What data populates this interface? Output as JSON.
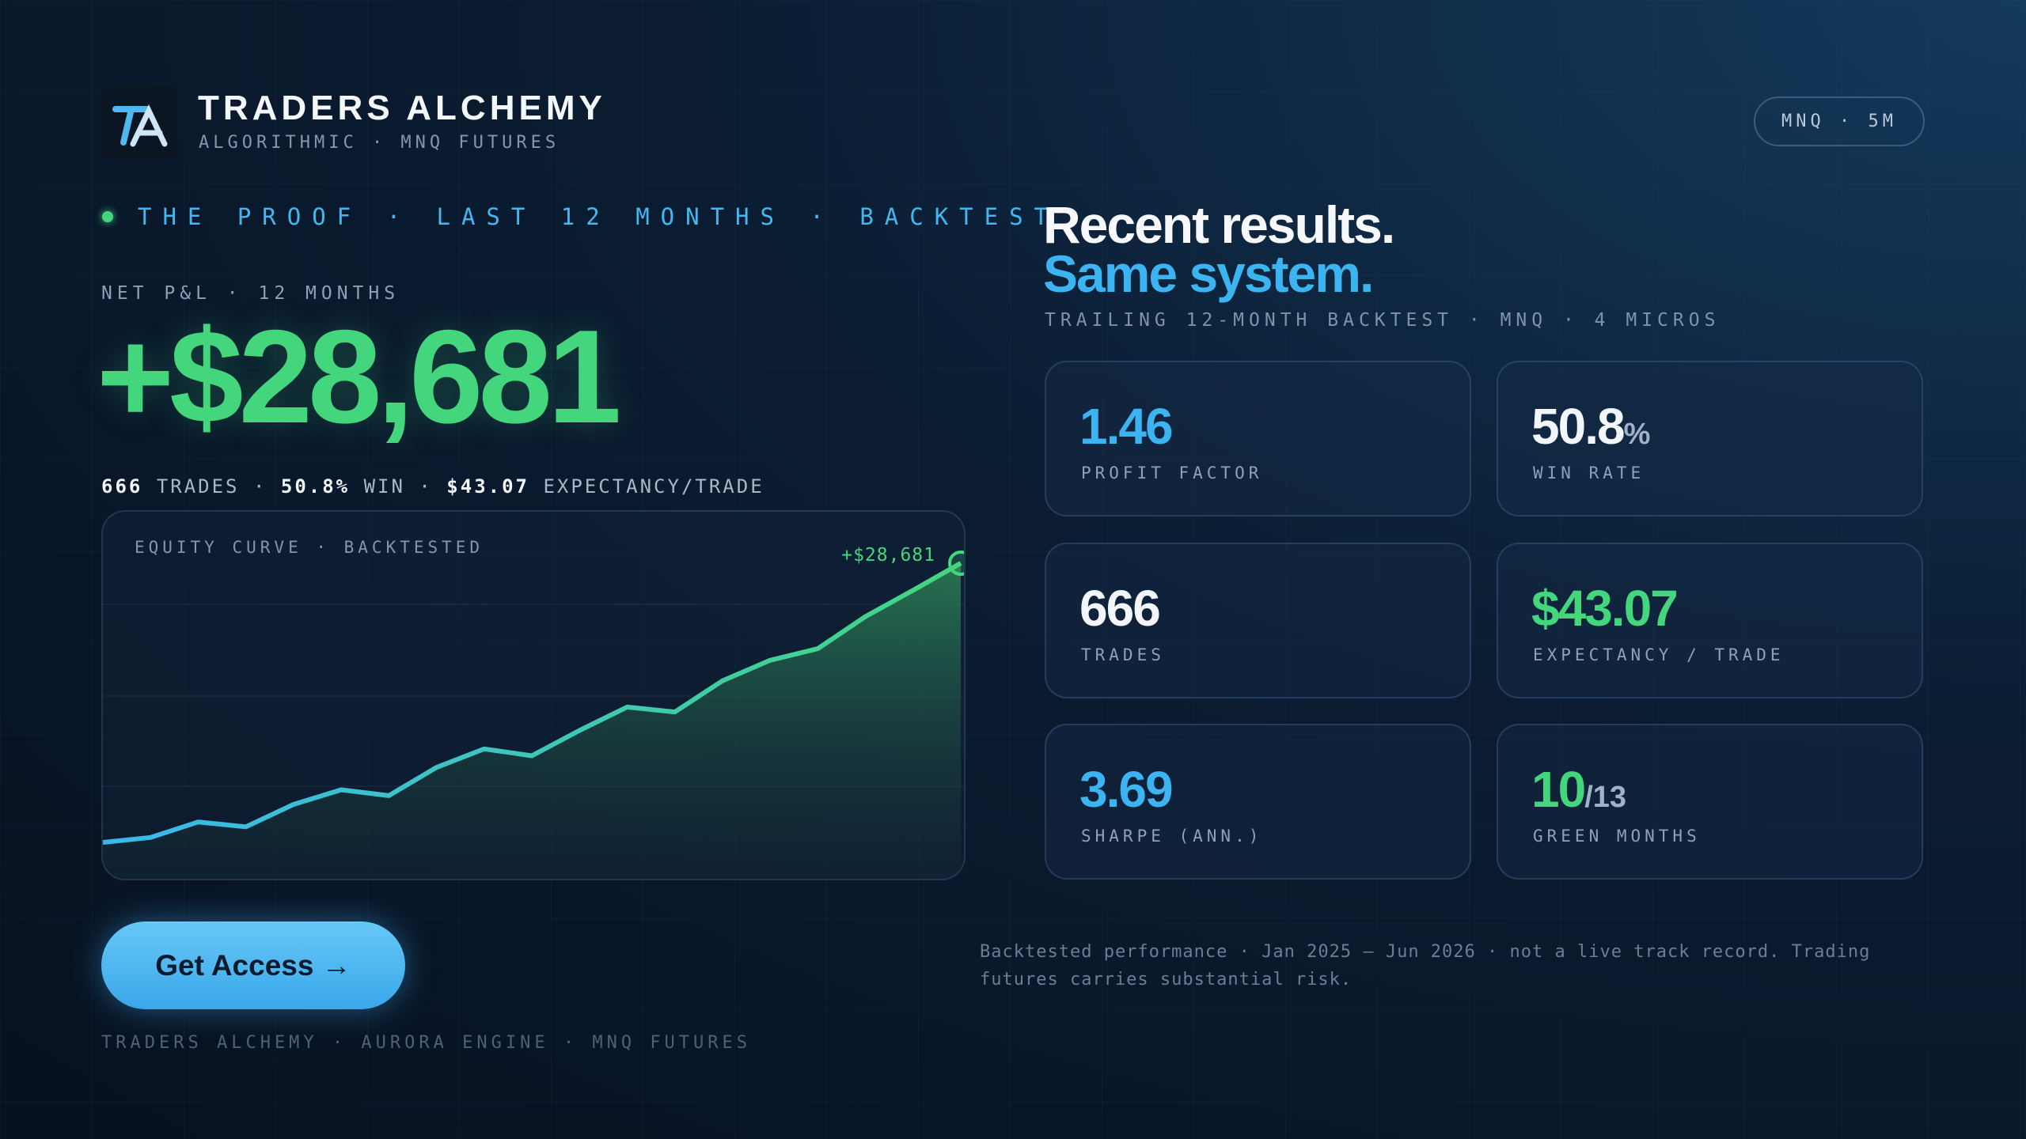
{
  "header": {
    "brand": "TRADERS ALCHEMY",
    "tagline": "ALGORITHMIC · MNQ FUTURES",
    "badge": "MNQ · 5M"
  },
  "proof_label": "THE PROOF · LAST 12 MONTHS · BACKTEST",
  "pnl": {
    "label": "NET P&L · 12 MONTHS",
    "value": "+$28,681",
    "separator": "·",
    "stats": [
      {
        "value": "666",
        "unit": "TRADES"
      },
      {
        "value": "50.8%",
        "unit": "WIN"
      },
      {
        "value": "$43.07",
        "unit": "EXPECTANCY/TRADE"
      }
    ]
  },
  "equity_chart": {
    "type": "line",
    "label": "EQUITY CURVE · BACKTESTED",
    "end_label": "+$28,681",
    "values": [
      0,
      500,
      2100,
      1600,
      3900,
      5400,
      4800,
      7700,
      9600,
      8900,
      11500,
      13900,
      13400,
      16600,
      18700,
      19900,
      23200,
      25900,
      28681
    ]
  },
  "headline": {
    "line1": "Recent results.",
    "line2": "Same system.",
    "subtitle": "TRAILING 12-MONTH BACKTEST · MNQ · 4 MICROS"
  },
  "metrics": [
    {
      "value": "1.46",
      "label": "PROFIT FACTOR",
      "color": "#3db4f2"
    },
    {
      "value": "50.8",
      "suffix": "%",
      "label": "WIN RATE",
      "color": "#f2f5fa"
    },
    {
      "value": "666",
      "label": "TRADES",
      "color": "#f2f5fa"
    },
    {
      "value": "$43.07",
      "label": "EXPECTANCY / TRADE",
      "color": "#44d67d"
    },
    {
      "value": "3.69",
      "label": "SHARPE (ANN.)",
      "color": "#3db4f2"
    },
    {
      "value": "10",
      "suffix": "/13",
      "label": "GREEN MONTHS",
      "color": "#44d67d"
    }
  ],
  "button": "Get Access →",
  "footer": "TRADERS ALCHEMY · AURORA ENGINE · MNQ FUTURES",
  "disclaimer": "Backtested performance · Jan 2025 – Jun 2026 · not a live track record. Trading futures carries substantial risk."
}
